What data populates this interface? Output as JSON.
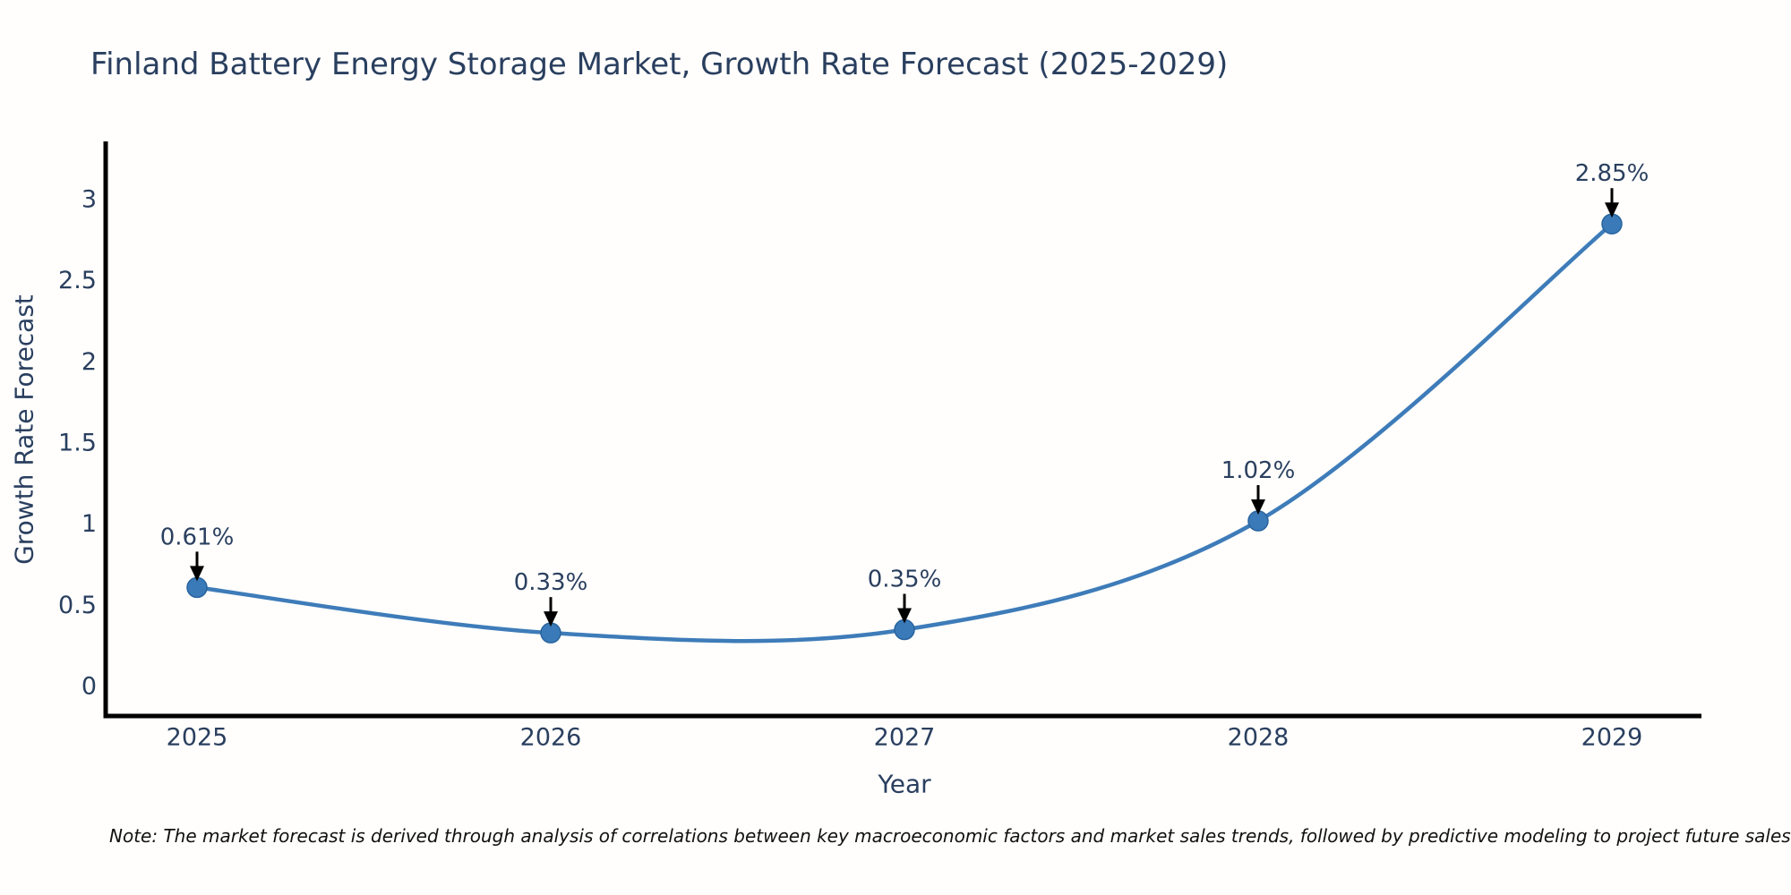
{
  "title": "Finland Battery Energy Storage Market, Growth Rate Forecast (2025-2029)",
  "note": "Note: The market forecast is derived through analysis of correlations between key macroeconomic factors and market sales trends, followed by predictive modeling to project future sales",
  "chart_data": {
    "type": "line",
    "title": "Finland Battery Energy Storage Market, Growth Rate Forecast (2025-2029)",
    "xlabel": "Year",
    "ylabel": "Growth Rate Forecast",
    "categories": [
      "2025",
      "2026",
      "2027",
      "2028",
      "2029"
    ],
    "x": [
      2025,
      2026,
      2027,
      2028,
      2029
    ],
    "values": [
      0.61,
      0.33,
      0.35,
      1.02,
      2.85
    ],
    "point_labels": [
      "0.61%",
      "0.33%",
      "0.35%",
      "1.02%",
      "2.85%"
    ],
    "yticks": [
      0,
      0.5,
      1,
      1.5,
      2,
      2.5,
      3
    ],
    "xlim": [
      2024.73,
      2029.25
    ],
    "ylim": [
      -0.18,
      3.36
    ],
    "grid": false,
    "legend_position": "none",
    "curve": "spline",
    "marker": "circle",
    "annotation_arrows": true
  },
  "colors": {
    "line": "#3e7cb9",
    "marker_fill": "#3a7ab8",
    "marker_edge": "#29649e",
    "axis": "#000000",
    "chart_text": "#2a3f5f",
    "arrow": "#000000",
    "note_text": "#111111",
    "background": "#fffefc"
  }
}
